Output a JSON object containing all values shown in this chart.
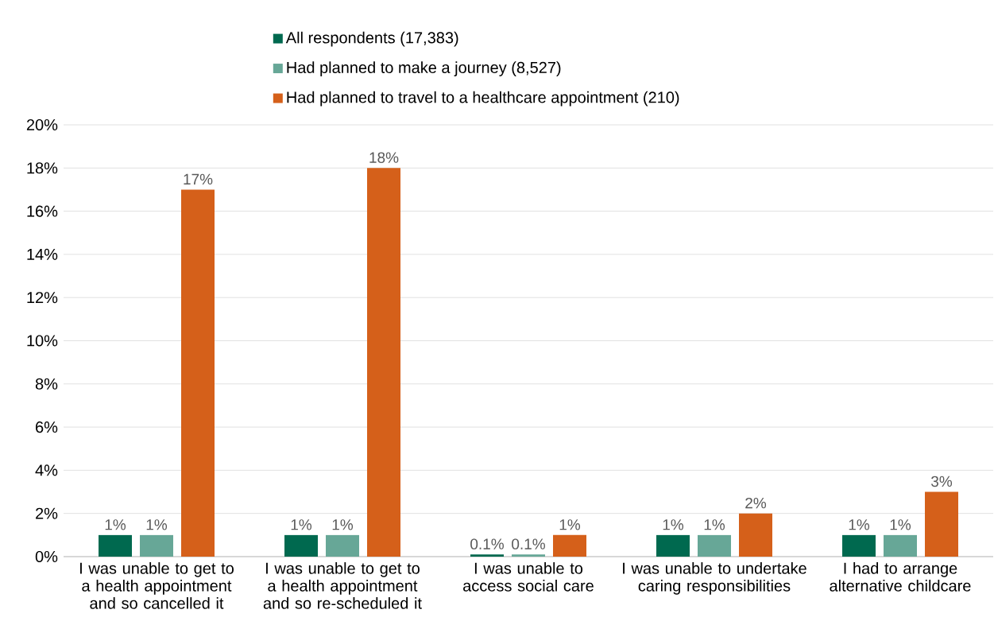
{
  "chart_data": {
    "type": "bar",
    "categories": [
      "I was unable to get to a health appointment and so cancelled it",
      "I was unable to get to a health appointment and so re-scheduled it",
      "I was unable to access social care",
      "I was unable to undertake caring responsibilities",
      "I had to arrange alternative childcare"
    ],
    "series": [
      {
        "name": "All respondents (17,383)",
        "color": "#00694f",
        "values": [
          1,
          1,
          0.1,
          1,
          1
        ],
        "value_labels": [
          "1%",
          "1%",
          "0.1%",
          "1%",
          "1%"
        ]
      },
      {
        "name": "Had planned to make a journey (8,527)",
        "color": "#67a797",
        "values": [
          1,
          1,
          0.1,
          1,
          1
        ],
        "value_labels": [
          "1%",
          "1%",
          "0.1%",
          "1%",
          "1%"
        ]
      },
      {
        "name": "Had planned to travel to a healthcare appointment (210)",
        "color": "#d5601a",
        "values": [
          17,
          18,
          1,
          2,
          3
        ],
        "value_labels": [
          "17%",
          "18%",
          "1%",
          "2%",
          "3%"
        ]
      }
    ],
    "ylim": [
      0,
      20
    ],
    "yticks": [
      {
        "value": 0,
        "label": "0%"
      },
      {
        "value": 2,
        "label": "2%"
      },
      {
        "value": 4,
        "label": "4%"
      },
      {
        "value": 6,
        "label": "6%"
      },
      {
        "value": 8,
        "label": "8%"
      },
      {
        "value": 10,
        "label": "10%"
      },
      {
        "value": 12,
        "label": "12%"
      },
      {
        "value": 14,
        "label": "14%"
      },
      {
        "value": 16,
        "label": "16%"
      },
      {
        "value": 18,
        "label": "18%"
      },
      {
        "value": 20,
        "label": "20%"
      }
    ],
    "grid": "y",
    "legend": "top"
  }
}
